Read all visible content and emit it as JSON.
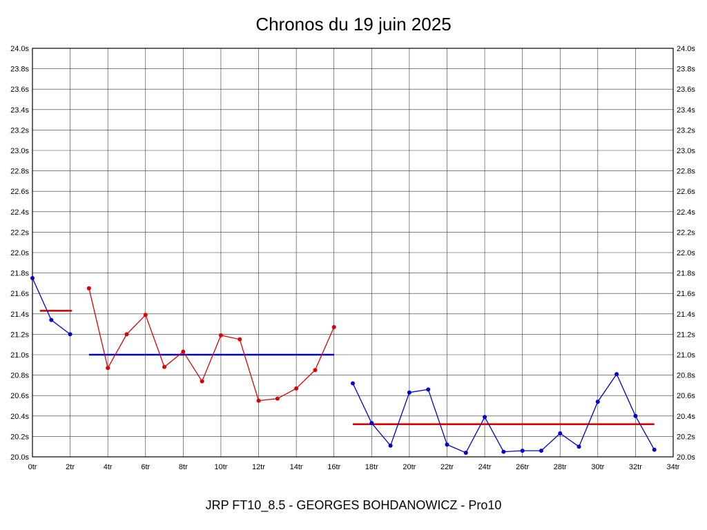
{
  "chart_data": {
    "type": "line",
    "title": "Chronos du 19 juin 2025",
    "caption": "JRP FT10_8.5 - GEORGES BOHDANOWICZ - Pro10",
    "xlabel": "",
    "ylabel": "",
    "x_unit": "tr",
    "y_unit": "s",
    "xlim": [
      0,
      34
    ],
    "ylim": [
      20.0,
      24.0
    ],
    "grid": true,
    "legend": "none",
    "x_tick_values": [
      0,
      2,
      4,
      6,
      8,
      10,
      12,
      14,
      16,
      18,
      20,
      22,
      24,
      26,
      28,
      30,
      32,
      34
    ],
    "x_ticks": [
      "0tr",
      "2tr",
      "4tr",
      "6tr",
      "8tr",
      "10tr",
      "12tr",
      "14tr",
      "16tr",
      "18tr",
      "20tr",
      "22tr",
      "24tr",
      "26tr",
      "28tr",
      "30tr",
      "32tr",
      "34tr"
    ],
    "y_tick_values": [
      24.0,
      23.8,
      23.6,
      23.4,
      23.2,
      23.0,
      22.8,
      22.6,
      22.4,
      22.2,
      22.0,
      21.8,
      21.6,
      21.4,
      21.2,
      21.0,
      20.8,
      20.6,
      20.4,
      20.2,
      20.0
    ],
    "y_ticks": [
      "24.0s",
      "23.8s",
      "23.6s",
      "23.4s",
      "23.2s",
      "23.0s",
      "22.8s",
      "22.6s",
      "22.4s",
      "22.2s",
      "22.0s",
      "21.8s",
      "21.6s",
      "21.4s",
      "21.2s",
      "21.0s",
      "20.8s",
      "20.6s",
      "20.4s",
      "20.2s",
      "20.0s"
    ],
    "colors": {
      "blue": "#0000cc",
      "red": "#dd0000",
      "grid": "#333333",
      "axis": "#000000",
      "background": "#ffffff"
    },
    "series": [
      {
        "name": "stint-1-laps",
        "color_key": "blue",
        "x": [
          0,
          1,
          2
        ],
        "y": [
          21.75,
          21.34,
          21.2
        ]
      },
      {
        "name": "stint-2-laps",
        "color_key": "red",
        "x": [
          3,
          4,
          5,
          6,
          7,
          8,
          9,
          10,
          11,
          12,
          13,
          14,
          15,
          16
        ],
        "y": [
          21.65,
          20.87,
          21.2,
          21.39,
          20.88,
          21.03,
          20.74,
          21.19,
          21.15,
          20.55,
          20.57,
          20.67,
          20.85,
          21.27
        ]
      },
      {
        "name": "stint-3-laps",
        "color_key": "blue",
        "x": [
          17,
          18,
          19,
          20,
          21,
          22,
          23,
          24,
          25,
          26,
          27,
          28,
          29,
          30,
          31,
          32,
          33
        ],
        "y": [
          20.72,
          20.33,
          20.11,
          20.63,
          20.66,
          20.12,
          20.04,
          20.39,
          20.05,
          20.06,
          20.06,
          20.23,
          20.1,
          20.54,
          20.81,
          20.4,
          20.07
        ]
      }
    ],
    "average_lines": [
      {
        "name": "stint-1-average",
        "color_key": "red",
        "y": 21.43,
        "x_start": 0.4,
        "x_end": 2.1
      },
      {
        "name": "stint-2-average",
        "color_key": "blue",
        "y": 21.0,
        "x_start": 3,
        "x_end": 16
      },
      {
        "name": "stint-3-average",
        "color_key": "red",
        "y": 20.32,
        "x_start": 17,
        "x_end": 33
      }
    ]
  }
}
